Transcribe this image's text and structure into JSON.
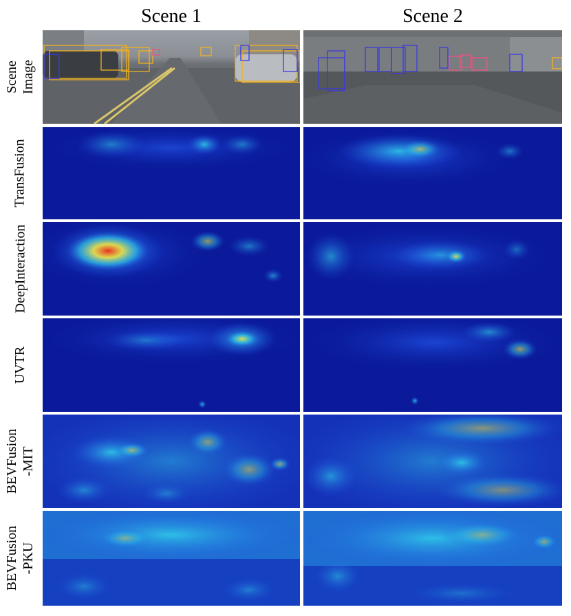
{
  "columns": {
    "scene1": "Scene 1",
    "scene2": "Scene 2"
  },
  "rows": {
    "scene_image": [
      "Scene",
      "Image"
    ],
    "transfusion": [
      "TransFusion"
    ],
    "deepinteraction": [
      "DeepInteraction"
    ],
    "uvtr": [
      "UVTR"
    ],
    "bevfusion_mit": [
      "BEVFusion",
      "-MIT"
    ],
    "bevfusion_pku": [
      "BEVFusion",
      "-PKU"
    ]
  },
  "colors": {
    "heat_base": "#0a1a9a",
    "heat_low": "#1f4fe0",
    "heat_mid": "#2fc8e8",
    "heat_high": "#f0e040",
    "heat_peak": "#e83020",
    "box_car": "#f2b21c",
    "box_pedestrian": "#3a3ae0",
    "box_barrier": "#f05080"
  }
}
